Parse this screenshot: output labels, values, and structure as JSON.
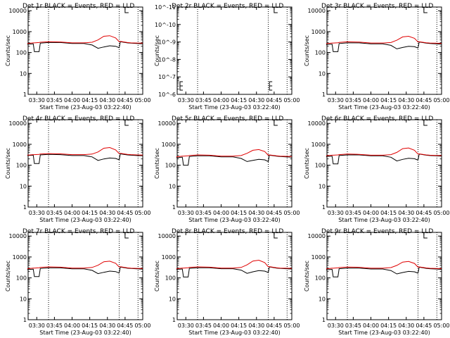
{
  "colors": {
    "events": "#000000",
    "lld": "#e00000",
    "axes": "#000000",
    "background": "#ffffff"
  },
  "chart_data": [
    {
      "type": "line",
      "title": "Det 1r BLACK = Events, RED = LLD",
      "xlabel": "Start Time (23-Aug-03 03:22:40)",
      "ylabel": "Counts/sec",
      "xlim": [
        "03:22:40",
        "05:00:00"
      ],
      "ylim": [
        1,
        15000
      ],
      "yscale": "log",
      "xticks": [
        "03:30",
        "03:45",
        "04:00",
        "04:15",
        "04:30",
        "04:45",
        "05:00"
      ],
      "yticks": [
        "1",
        "10",
        "100",
        "1000",
        "10000"
      ],
      "dotted_lines": [
        "03:40",
        "04:40",
        "04:56"
      ],
      "marker_time": "04:45",
      "x": [
        "03:22",
        "03:27",
        "03:28",
        "03:32",
        "03:33",
        "03:40",
        "03:50",
        "04:00",
        "04:10",
        "04:17",
        "04:22",
        "04:27",
        "04:32",
        "04:37",
        "04:40",
        "04:41",
        "04:47",
        "04:50",
        "04:55",
        "05:00"
      ],
      "series": [
        {
          "name": "BLACK = Events",
          "values": [
            250,
            260,
            110,
            110,
            280,
            300,
            300,
            270,
            270,
            230,
            160,
            185,
            210,
            200,
            170,
            330,
            290,
            280,
            270,
            260
          ]
        },
        {
          "name": "RED = LLD",
          "values": [
            270,
            290,
            290,
            300,
            310,
            330,
            320,
            290,
            290,
            310,
            400,
            600,
            640,
            500,
            330,
            340,
            300,
            290,
            285,
            280
          ]
        }
      ]
    },
    {
      "type": "line",
      "title": "Det 2r BLACK = Events, RED = LLD",
      "xlabel": "Start Time (23-Aug-03 03:22:40)",
      "ylabel": "Counts/sec",
      "xlim": [
        "03:22:40",
        "05:00:00"
      ],
      "ylim": [
        1e-06,
        1e-11
      ],
      "yscale": "log",
      "xticks": [
        "03:30",
        "03:45",
        "04:00",
        "04:15",
        "04:30",
        "04:45",
        "05:00"
      ],
      "yticks": [
        "10^-6",
        "10^-7",
        "10^-8",
        "10^-9",
        "10^-10",
        "10^-11"
      ],
      "dotted_lines": [
        "03:40",
        "04:40",
        "04:56"
      ],
      "marker_time": "04:45",
      "x": [],
      "series": []
    },
    {
      "type": "line",
      "title": "Det 3r BLACK = Events, RED = LLD",
      "xlabel": "Start Time (23-Aug-03 03:22:40)",
      "ylabel": "Counts/sec",
      "xlim": [
        "03:22:40",
        "05:00:00"
      ],
      "ylim": [
        1,
        15000
      ],
      "yscale": "log",
      "xticks": [
        "03:30",
        "03:45",
        "04:00",
        "04:15",
        "04:30",
        "04:45",
        "05:00"
      ],
      "yticks": [
        "1",
        "10",
        "100",
        "1000",
        "10000"
      ],
      "dotted_lines": [
        "03:40",
        "04:40",
        "04:56"
      ],
      "marker_time": "04:45",
      "x": [
        "03:22",
        "03:27",
        "03:28",
        "03:32",
        "03:33",
        "03:40",
        "03:50",
        "04:00",
        "04:10",
        "04:17",
        "04:22",
        "04:27",
        "04:32",
        "04:37",
        "04:40",
        "04:41",
        "04:47",
        "04:50",
        "04:55",
        "05:00"
      ],
      "series": [
        {
          "name": "BLACK = Events",
          "values": [
            240,
            250,
            110,
            110,
            270,
            290,
            290,
            260,
            260,
            220,
            150,
            175,
            200,
            190,
            165,
            320,
            280,
            270,
            260,
            250
          ]
        },
        {
          "name": "RED = LLD",
          "values": [
            265,
            285,
            285,
            295,
            305,
            325,
            315,
            285,
            285,
            300,
            390,
            560,
            600,
            480,
            320,
            330,
            295,
            285,
            280,
            275
          ]
        }
      ]
    },
    {
      "type": "line",
      "title": "Det 4r BLACK = Events, RED = LLD",
      "xlabel": "Start Time (23-Aug-03 03:22:40)",
      "ylabel": "Counts/sec",
      "xlim": [
        "03:22:40",
        "05:00:00"
      ],
      "ylim": [
        1,
        15000
      ],
      "yscale": "log",
      "xticks": [
        "03:30",
        "03:45",
        "04:00",
        "04:15",
        "04:30",
        "04:45",
        "05:00"
      ],
      "yticks": [
        "1",
        "10",
        "100",
        "1000",
        "10000"
      ],
      "dotted_lines": [
        "03:40",
        "04:40",
        "04:56"
      ],
      "marker_time": "04:45",
      "x": [
        "03:22",
        "03:27",
        "03:28",
        "03:32",
        "03:33",
        "03:40",
        "03:50",
        "04:00",
        "04:10",
        "04:17",
        "04:22",
        "04:27",
        "04:32",
        "04:37",
        "04:40",
        "04:41",
        "04:47",
        "04:50",
        "04:55",
        "05:00"
      ],
      "series": [
        {
          "name": "BLACK = Events",
          "values": [
            290,
            300,
            120,
            120,
            310,
            330,
            320,
            290,
            290,
            250,
            170,
            200,
            220,
            210,
            180,
            350,
            310,
            300,
            290,
            285
          ]
        },
        {
          "name": "RED = LLD",
          "values": [
            300,
            320,
            320,
            330,
            340,
            360,
            350,
            320,
            320,
            340,
            430,
            650,
            700,
            540,
            360,
            370,
            330,
            320,
            310,
            305
          ]
        }
      ]
    },
    {
      "type": "line",
      "title": "Det 5r BLACK = Events, RED = LLD",
      "xlabel": "Start Time (23-Aug-03 03:22:40)",
      "ylabel": "Counts/sec",
      "xlim": [
        "03:22:40",
        "05:00:00"
      ],
      "ylim": [
        1,
        15000
      ],
      "yscale": "log",
      "xticks": [
        "03:30",
        "03:45",
        "04:00",
        "04:15",
        "04:30",
        "04:45",
        "05:00"
      ],
      "yticks": [
        "1",
        "10",
        "100",
        "1000",
        "10000"
      ],
      "dotted_lines": [
        "03:40",
        "04:40",
        "04:56"
      ],
      "marker_time": "04:45",
      "x": [
        "03:22",
        "03:27",
        "03:28",
        "03:32",
        "03:33",
        "03:40",
        "03:50",
        "04:00",
        "04:10",
        "04:17",
        "04:22",
        "04:27",
        "04:32",
        "04:37",
        "04:40",
        "04:41",
        "04:47",
        "04:50",
        "04:55",
        "05:00"
      ],
      "series": [
        {
          "name": "BLACK = Events",
          "values": [
            230,
            240,
            100,
            100,
            260,
            280,
            280,
            250,
            250,
            210,
            150,
            170,
            190,
            180,
            150,
            300,
            270,
            260,
            250,
            245
          ]
        },
        {
          "name": "RED = LLD",
          "values": [
            250,
            270,
            270,
            280,
            290,
            310,
            300,
            270,
            270,
            290,
            370,
            520,
            560,
            450,
            300,
            310,
            280,
            270,
            265,
            260
          ]
        }
      ]
    },
    {
      "type": "line",
      "title": "Det 6r BLACK = Events, RED = LLD",
      "xlabel": "Start Time (23-Aug-03 03:22:40)",
      "ylabel": "Counts/sec",
      "xlim": [
        "03:22:40",
        "05:00:00"
      ],
      "ylim": [
        1,
        15000
      ],
      "yscale": "log",
      "xticks": [
        "03:30",
        "03:45",
        "04:00",
        "04:15",
        "04:30",
        "04:45",
        "05:00"
      ],
      "yticks": [
        "1",
        "10",
        "100",
        "1000",
        "10000"
      ],
      "dotted_lines": [
        "03:40",
        "04:40",
        "04:56"
      ],
      "marker_time": "04:45",
      "x": [
        "03:22",
        "03:27",
        "03:28",
        "03:32",
        "03:33",
        "03:40",
        "03:50",
        "04:00",
        "04:10",
        "04:17",
        "04:22",
        "04:27",
        "04:32",
        "04:37",
        "04:40",
        "04:41",
        "04:47",
        "04:50",
        "04:55",
        "05:00"
      ],
      "series": [
        {
          "name": "BLACK = Events",
          "values": [
            260,
            270,
            115,
            115,
            290,
            310,
            310,
            280,
            280,
            240,
            160,
            190,
            215,
            205,
            175,
            340,
            300,
            290,
            280,
            270
          ]
        },
        {
          "name": "RED = LLD",
          "values": [
            280,
            300,
            300,
            310,
            320,
            340,
            330,
            300,
            300,
            320,
            410,
            620,
            670,
            520,
            340,
            350,
            310,
            300,
            295,
            290
          ]
        }
      ]
    },
    {
      "type": "line",
      "title": "Det 7r BLACK = Events, RED = LLD",
      "xlabel": "Start Time (23-Aug-03 03:22:40)",
      "ylabel": "Counts/sec",
      "xlim": [
        "03:22:40",
        "05:00:00"
      ],
      "ylim": [
        1,
        15000
      ],
      "yscale": "log",
      "xticks": [
        "03:30",
        "03:45",
        "04:00",
        "04:15",
        "04:30",
        "04:45",
        "05:00"
      ],
      "yticks": [
        "1",
        "10",
        "100",
        "1000",
        "10000"
      ],
      "dotted_lines": [
        "03:40",
        "04:40",
        "04:56"
      ],
      "marker_time": "04:45",
      "x": [
        "03:22",
        "03:27",
        "03:28",
        "03:32",
        "03:33",
        "03:40",
        "03:50",
        "04:00",
        "04:10",
        "04:17",
        "04:22",
        "04:27",
        "04:32",
        "04:37",
        "04:40",
        "04:41",
        "04:47",
        "04:50",
        "04:55",
        "05:00"
      ],
      "series": [
        {
          "name": "BLACK = Events",
          "values": [
            250,
            260,
            115,
            115,
            280,
            300,
            300,
            270,
            270,
            230,
            160,
            185,
            210,
            200,
            170,
            330,
            290,
            280,
            270,
            260
          ]
        },
        {
          "name": "RED = LLD",
          "values": [
            275,
            295,
            295,
            305,
            315,
            335,
            325,
            295,
            295,
            315,
            400,
            590,
            630,
            500,
            330,
            340,
            300,
            290,
            285,
            280
          ]
        }
      ]
    },
    {
      "type": "line",
      "title": "Det 8r BLACK = Events, RED = LLD",
      "xlabel": "Start Time (23-Aug-03 03:22:40)",
      "ylabel": "Counts/sec",
      "xlim": [
        "03:22:40",
        "05:00:00"
      ],
      "ylim": [
        1,
        15000
      ],
      "yscale": "log",
      "xticks": [
        "03:30",
        "03:45",
        "04:00",
        "04:15",
        "04:30",
        "04:45",
        "05:00"
      ],
      "yticks": [
        "1",
        "10",
        "100",
        "1000",
        "10000"
      ],
      "dotted_lines": [
        "03:40",
        "04:40",
        "04:56"
      ],
      "marker_time": "04:45",
      "x": [
        "03:22",
        "03:27",
        "03:28",
        "03:32",
        "03:33",
        "03:40",
        "03:50",
        "04:00",
        "04:10",
        "04:17",
        "04:22",
        "04:27",
        "04:32",
        "04:37",
        "04:40",
        "04:41",
        "04:47",
        "04:50",
        "04:55",
        "05:00"
      ],
      "series": [
        {
          "name": "BLACK = Events",
          "values": [
            255,
            265,
            110,
            110,
            285,
            305,
            305,
            275,
            275,
            235,
            165,
            195,
            225,
            210,
            180,
            335,
            295,
            285,
            275,
            265
          ]
        },
        {
          "name": "RED = LLD",
          "values": [
            275,
            295,
            295,
            305,
            315,
            335,
            325,
            295,
            295,
            315,
            420,
            640,
            700,
            540,
            340,
            345,
            305,
            295,
            290,
            285
          ]
        }
      ]
    },
    {
      "type": "line",
      "title": "Det 9r BLACK = Events, RED = LLD",
      "xlabel": "Start Time (23-Aug-03 03:22:40)",
      "ylabel": "Counts/sec",
      "xlim": [
        "03:22:40",
        "05:00:00"
      ],
      "ylim": [
        1,
        15000
      ],
      "yscale": "log",
      "xticks": [
        "03:30",
        "03:45",
        "04:00",
        "04:15",
        "04:30",
        "04:45",
        "05:00"
      ],
      "yticks": [
        "1",
        "10",
        "100",
        "1000",
        "10000"
      ],
      "dotted_lines": [
        "03:40",
        "04:40",
        "04:56"
      ],
      "marker_time": "04:45",
      "x": [
        "03:22",
        "03:27",
        "03:28",
        "03:32",
        "03:33",
        "03:40",
        "03:50",
        "04:00",
        "04:10",
        "04:17",
        "04:22",
        "04:27",
        "04:32",
        "04:37",
        "04:40",
        "04:41",
        "04:47",
        "04:50",
        "04:55",
        "05:00"
      ],
      "series": [
        {
          "name": "BLACK = Events",
          "values": [
            245,
            255,
            112,
            112,
            275,
            295,
            295,
            265,
            265,
            225,
            155,
            180,
            205,
            195,
            168,
            325,
            285,
            275,
            265,
            255
          ]
        },
        {
          "name": "RED = LLD",
          "values": [
            270,
            290,
            290,
            300,
            310,
            330,
            320,
            290,
            290,
            310,
            395,
            570,
            610,
            490,
            325,
            335,
            298,
            288,
            282,
            278
          ]
        }
      ]
    }
  ]
}
